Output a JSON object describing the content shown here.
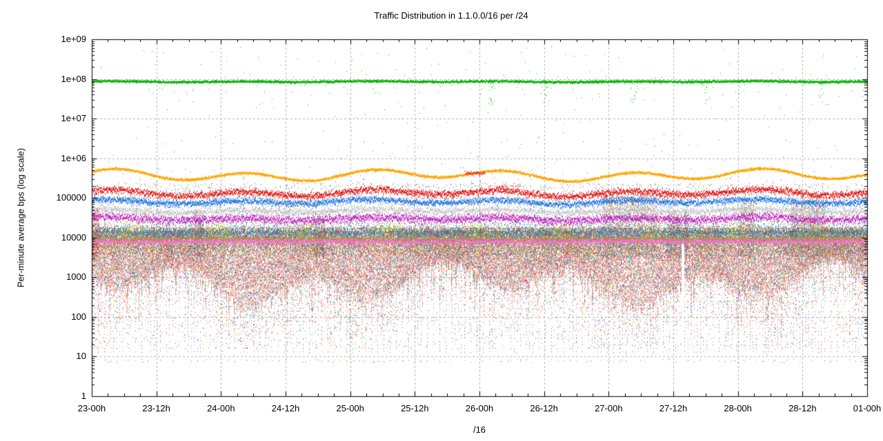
{
  "chart_data": {
    "type": "scatter",
    "title": "Traffic Distribution in 1.1.0.0/16 per /24",
    "xlabel": "/16",
    "ylabel": "Per-minute average bps (log scale)",
    "x_ticks": [
      "23-00h",
      "23-12h",
      "24-00h",
      "24-12h",
      "25-00h",
      "25-12h",
      "26-00h",
      "26-12h",
      "27-00h",
      "27-12h",
      "28-00h",
      "28-12h",
      "01-00h"
    ],
    "y_ticks": [
      "1",
      "10",
      "100",
      "1000",
      "10000",
      "100000",
      "1e+06",
      "1e+07",
      "1e+08",
      "1e+09"
    ],
    "y_log_min": 0,
    "y_log_max": 9,
    "grid": "dashed",
    "grid_color": "#b2b2b2",
    "axis_color": "#000000",
    "background": "#ffffff",
    "seed": 1337,
    "bands": [
      {
        "name": "green-80Mbps-line",
        "color": "#00B400",
        "log_level": 7.93,
        "wave_amp": 0.012,
        "phase": 0.1,
        "jitter": 0.028,
        "pts": 3,
        "outlier_rate": 0.1,
        "outlier_spread": 0.32,
        "thickness": 2
      },
      {
        "name": "orange-400Kbps-line",
        "color": "#FFA500",
        "log_level": 5.57,
        "wave_amp": 0.15,
        "phase": 0.06,
        "jitter": 0.03,
        "pts": 3,
        "outlier_rate": 0.05,
        "outlier_spread": 0.5,
        "thickness": 2
      },
      {
        "name": "red-130Kbps-band",
        "color": "#E41210",
        "log_level": 5.12,
        "wave_amp": 0.085,
        "phase": 0.08,
        "jitter": 0.085,
        "pts": 3,
        "outlier_rate": 0.13,
        "outlier_spread": 0.3,
        "thickness": 2
      },
      {
        "name": "blue-80Kbps-band",
        "color": "#2279E6",
        "log_level": 4.9,
        "wave_amp": 0.058,
        "phase": 0.1,
        "jitter": 0.075,
        "pts": 3,
        "outlier_rate": 0.08,
        "outlier_spread": 0.22,
        "thickness": 2
      },
      {
        "name": "gray-47Kbps-band",
        "color": "#C8C8C8",
        "log_level": 4.67,
        "wave_amp": 0.042,
        "phase": 0.1,
        "jitter": 0.065,
        "pts": 2,
        "outlier_rate": 0.05,
        "outlier_spread": 0.18,
        "thickness": 2
      },
      {
        "name": "magenta-30Kbps-band",
        "color": "#C520C5",
        "log_level": 4.47,
        "wave_amp": 0.05,
        "phase": 0.08,
        "jitter": 0.1,
        "pts": 3,
        "outlier_rate": 0.12,
        "outlier_spread": 0.26,
        "thickness": 2
      },
      {
        "name": "tan-9Kbps-band",
        "color": "#C8845A",
        "log_level": 3.96,
        "wave_amp": 0.01,
        "phase": 0.3,
        "jitter": 0.045,
        "pts": 2,
        "outlier_rate": 0.0,
        "outlier_spread": 0.0,
        "thickness": 2
      },
      {
        "name": "pink-8Kbps-band",
        "color": "#F075D8",
        "log_level": 3.89,
        "wave_amp": 0.008,
        "phase": 0.3,
        "jitter": 0.04,
        "pts": 3,
        "outlier_rate": 0.04,
        "outlier_spread": 0.1,
        "thickness": 2
      }
    ],
    "noise": {
      "log_top": 4.18,
      "env_base": 2.95,
      "env_wave1": 0.35,
      "env_wave2": 0.25,
      "pts_per_col": 85,
      "col_step": 9,
      "bottom_row_log": 0.89,
      "yellow": "#F0E000",
      "palette_top": [
        "#008B8B",
        "#20A8A8",
        "#2E8B57",
        "#4682B4",
        "#FF8C00",
        "#B8860B",
        "#9932CC",
        "#DC143C",
        "#1E90FF",
        "#C71585",
        "#5F9EA0",
        "#3CB371",
        "#708090",
        "#FFD700",
        "#008B8B",
        "#4169E1"
      ],
      "palette_mid": [
        "#FA8072",
        "#FA8072",
        "#FF8C00",
        "#008B8B",
        "#3CB371",
        "#CD5C5C",
        "#9932CC",
        "#4682B4",
        "#8B4513",
        "#FFD700",
        "#F08080",
        "#DC143C",
        "#20B2AA",
        "#DA70D6",
        "#FA8072",
        "#6B8E23"
      ],
      "palette_low": [
        "#FA8072",
        "#FA8072",
        "#FA8072",
        "#F08080",
        "#E9967A",
        "#FA8072",
        "#FF8C00",
        "#CD853F",
        "#008B8B",
        "#9932CC",
        "#4682B4",
        "#DC143C",
        "#3CB371",
        "#FA8072",
        "#FFB6C1",
        "#20B2AA"
      ],
      "palette_any": [
        "#DC143C",
        "#FF8C00",
        "#FFD700",
        "#3CB371",
        "#008B8B",
        "#1E90FF",
        "#9932CC",
        "#FA8072",
        "#8B4513",
        "#C71585",
        "#00CED1",
        "#556B2F",
        "#4169E1",
        "#FF69B4",
        "#E41210",
        "#2E8B57"
      ],
      "palette_bottom": [
        "#E41210",
        "#FF8C00",
        "#FA8072",
        "#9932CC",
        "#1E90FF",
        "#008B8B",
        "#E41210",
        "#FF8C00"
      ],
      "palette_high": [
        "#2E8B57",
        "#008B8B",
        "#00B400",
        "#556B2F",
        "#20B2AA",
        "#00B400"
      ]
    },
    "palette_tower": [
      "#A8A8A8",
      "#989898",
      "#BEBEBE",
      "#B0B0B0",
      "#FA8072",
      "#008B8B",
      "#FF8C00",
      "#9932CC",
      "#2E8B57",
      "#DC143C",
      "#FFD700",
      "#1E90FF",
      "#8B4513",
      "#A8A8A8"
    ],
    "palette_warm": [
      "#CD5C5C",
      "#FA8072",
      "#B22222",
      "#CD853F",
      "#8B4513",
      "#DC143C",
      "#E9967A",
      "#A0522D",
      "#FF8C00",
      "#C71585"
    ],
    "towers": [
      {
        "x0": 0.0,
        "x1": 0.008,
        "top": 4.6,
        "density": 1.0,
        "palette": "warm"
      },
      {
        "x0": 0.132,
        "x1": 0.143,
        "top": 4.55,
        "density": 0.8,
        "palette": "any"
      },
      {
        "x0": 0.283,
        "x1": 0.3,
        "top": 4.45,
        "density": 0.6,
        "palette": "any"
      },
      {
        "x0": 0.659,
        "x1": 0.684,
        "top": 4.93,
        "density": 1.0,
        "palette": "tower"
      },
      {
        "x0": 0.687,
        "x1": 0.728,
        "top": 4.93,
        "density": 1.0,
        "palette": "tower"
      },
      {
        "x0": 0.742,
        "x1": 0.761,
        "top": 4.5,
        "density": 0.7,
        "palette": "any"
      },
      {
        "x0": 0.764,
        "x1": 0.769,
        "top": 4.72,
        "density": 0.9,
        "palette": "any"
      },
      {
        "x0": 0.835,
        "x1": 0.853,
        "top": 4.72,
        "density": 0.9,
        "palette": "tower"
      },
      {
        "x0": 0.902,
        "x1": 0.947,
        "top": 4.82,
        "density": 1.0,
        "palette": "tower"
      }
    ],
    "thin_spikes": [
      {
        "x": 0.195,
        "top": 5.55
      },
      {
        "x": 0.5,
        "top": 5.7
      },
      {
        "x": 0.764,
        "top": 4.75
      }
    ],
    "spike_colors": [
      "#483D8B",
      "#8B008B",
      "#2F4F4F",
      "#B22222",
      "#191970"
    ],
    "gap": {
      "x0": 0.7607,
      "x1": 0.7634,
      "log_top": 3.86,
      "log_bottom": 0.82
    },
    "green_dips": [
      0.515,
      0.585,
      0.7,
      0.791,
      0.94
    ],
    "red_extra": {
      "cluster_x0": 0.482,
      "cluster_x1": 0.506,
      "cluster_log": 5.62,
      "trail_x0": 0.508,
      "trail_x1": 0.556,
      "trail_log": 5.3
    },
    "low_clusters": [
      {
        "x0": 0.0,
        "x1": 0.02,
        "boost": 3,
        "warm": true
      },
      {
        "x0": 0.29,
        "x1": 0.345,
        "boost": 2
      },
      {
        "x0": 0.6,
        "x1": 0.67,
        "boost": 2
      },
      {
        "x0": 0.875,
        "x1": 0.935,
        "boost": 3
      },
      {
        "x0": 0.955,
        "x1": 1.0,
        "boost": 3,
        "warm": true
      }
    ]
  }
}
